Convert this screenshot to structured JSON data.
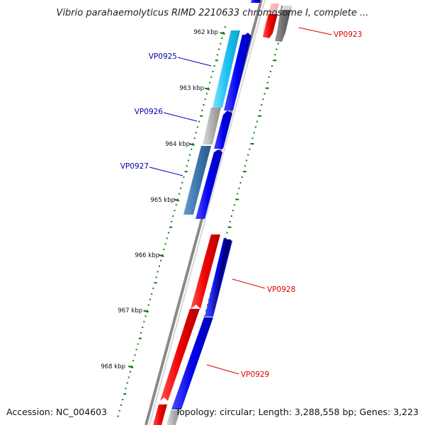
{
  "title": "Vibrio parahaemolyticus RIMD 2210633 chromosome I, complete ...",
  "accession": "Accession: NC_004603",
  "topology": "Topology: circular; Length: 3,288,558 bp; Genes: 3,223",
  "ticks": [
    {
      "label": "962 kbp",
      "kbp": 962
    },
    {
      "label": "963 kbp",
      "kbp": 963
    },
    {
      "label": "964 kbp",
      "kbp": 964
    },
    {
      "label": "965 kbp",
      "kbp": 965
    },
    {
      "label": "966 kbp",
      "kbp": 966
    },
    {
      "label": "967 kbp",
      "kbp": 967
    },
    {
      "label": "968 kbp",
      "kbp": 968
    }
  ],
  "genes": [
    {
      "name": "VP0923",
      "strand": "reverse",
      "color": "#dd0000"
    },
    {
      "name": "VP0925",
      "strand": "forward",
      "color": "#0000aa"
    },
    {
      "name": "VP0926",
      "strand": "forward",
      "color": "#0000aa"
    },
    {
      "name": "VP0927",
      "strand": "forward",
      "color": "#0000aa"
    },
    {
      "name": "VP0928",
      "strand": "reverse",
      "color": "#dd0000"
    },
    {
      "name": "VP0929",
      "strand": "reverse",
      "color": "#dd0000"
    }
  ],
  "colors": {
    "backbone": "#888888",
    "forward_cds": "#0000ee",
    "reverse_cds": "#ee0000",
    "tick": "#117711",
    "cog_light_blue": "#1ec3f2",
    "cog_steel_blue": "#3e77b0",
    "cog_gray": "#b0b0b0",
    "cog_navy": "#000088"
  }
}
